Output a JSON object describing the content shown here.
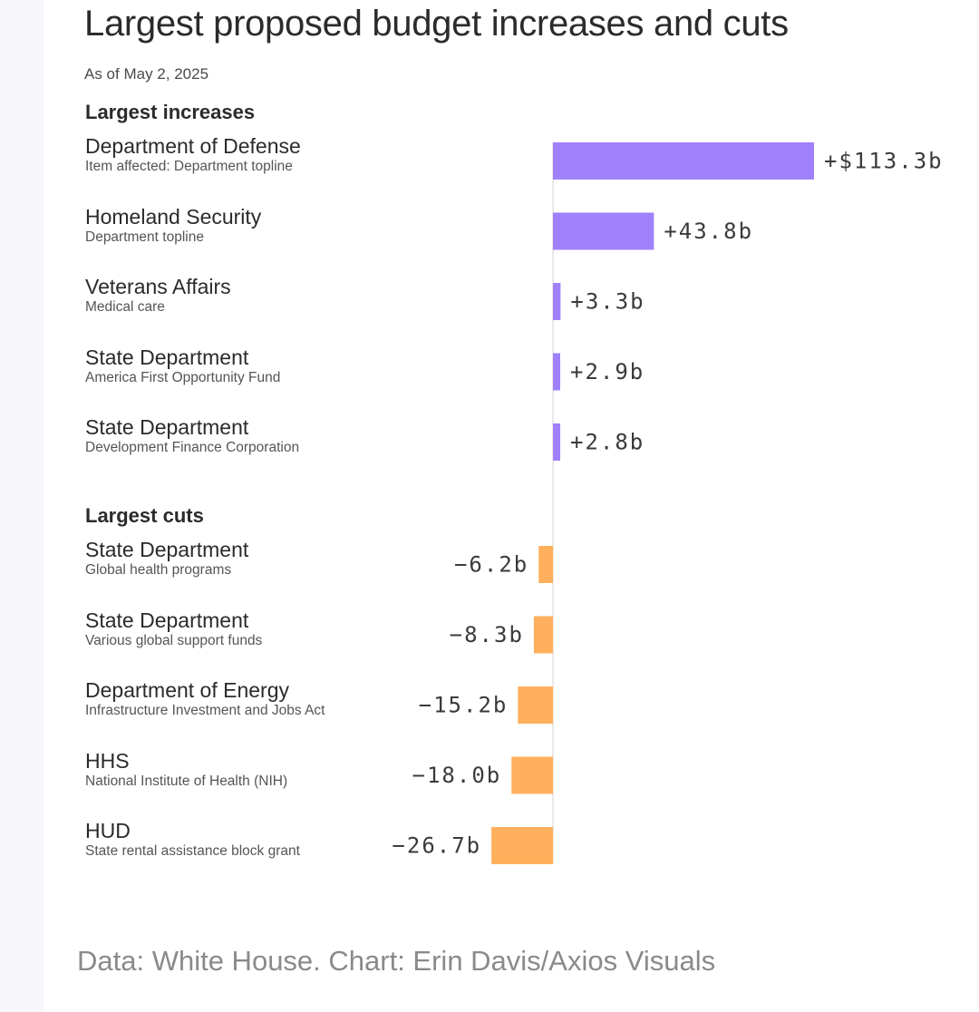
{
  "title": "Largest proposed budget increases and cuts",
  "subtitle": "As of May 2, 2025",
  "source": "Data: White House. Chart: Erin Davis/Axios Visuals",
  "colors": {
    "increase": "#a080fb",
    "cut": "#ffb05c",
    "axis": "#e2e2e2",
    "value_text": "#3a3a3a"
  },
  "chart_data": {
    "type": "bar",
    "orientation": "horizontal",
    "value_unit": "billion USD",
    "groups": [
      {
        "heading": "Largest increases",
        "rows": [
          {
            "name": "Department of Defense",
            "detail": "Item affected: Department topline",
            "value": 113.3,
            "label": "+$113.3b"
          },
          {
            "name": "Homeland Security",
            "detail": "Department topline",
            "value": 43.8,
            "label": "+43.8b"
          },
          {
            "name": "Veterans Affairs",
            "detail": "Medical care",
            "value": 3.3,
            "label": "+3.3b"
          },
          {
            "name": "State Department",
            "detail": "America First Opportunity Fund",
            "value": 2.9,
            "label": "+2.9b"
          },
          {
            "name": "State Department",
            "detail": "Development Finance Corporation",
            "value": 2.8,
            "label": "+2.8b"
          }
        ]
      },
      {
        "heading": "Largest cuts",
        "rows": [
          {
            "name": "State Department",
            "detail": "Global health programs",
            "value": -6.2,
            "label": "−6.2b"
          },
          {
            "name": "State Department",
            "detail": "Various global support funds",
            "value": -8.3,
            "label": "−8.3b"
          },
          {
            "name": "Department of Energy",
            "detail": "Infrastructure Investment and Jobs Act",
            "value": -15.2,
            "label": "−15.2b"
          },
          {
            "name": "HHS",
            "detail": "National Institute of Health (NIH)",
            "value": -18.0,
            "label": "−18.0b"
          },
          {
            "name": "HUD",
            "detail": "State rental assistance block grant",
            "value": -26.7,
            "label": "−26.7b"
          }
        ]
      }
    ]
  }
}
